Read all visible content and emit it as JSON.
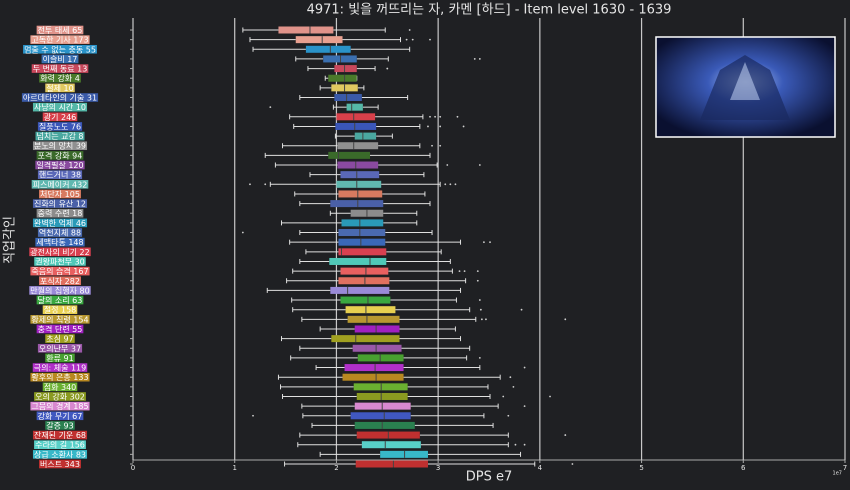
{
  "chart_data": {
    "type": "box",
    "title": "4971: 빛을 꺼뜨리는 자, 카멘 [하드] - Item level 1630 - 1639",
    "xlabel": "DPS e7",
    "ylabel": "직업각인",
    "offset_label": "1e7",
    "xlim": [
      0,
      7
    ],
    "xticks": [
      0,
      1,
      2,
      3,
      4,
      5,
      6,
      7
    ],
    "grid": true,
    "boxes": [
      {
        "name": "전투 태세 65",
        "color": "#e0938a",
        "whislo": 1.08,
        "q1": 1.43,
        "med": 1.74,
        "q3": 1.97,
        "whishi": 2.48,
        "fliers": [
          2.72
        ]
      },
      {
        "name": "고독한 기사 173",
        "color": "#e8a090",
        "whislo": 1.15,
        "q1": 1.6,
        "med": 1.86,
        "q3": 2.06,
        "whishi": 2.63,
        "fliers": [
          2.69,
          2.75,
          2.92
        ]
      },
      {
        "name": "멈출 수 없는 충동 55",
        "color": "#2a93c9",
        "whislo": 1.18,
        "q1": 1.7,
        "med": 1.94,
        "q3": 2.14,
        "whishi": 2.72,
        "fliers": []
      },
      {
        "name": "이슬비 17",
        "color": "#3a6fb0",
        "whislo": 1.6,
        "q1": 1.87,
        "med": 2.04,
        "q3": 2.2,
        "whishi": 2.51,
        "fliers": [
          3.36,
          3.41
        ]
      },
      {
        "name": "두 번째 동료 13",
        "color": "#c8485c",
        "whislo": 1.72,
        "q1": 1.98,
        "med": 2.08,
        "q3": 2.2,
        "whishi": 2.38,
        "fliers": [
          2.5
        ]
      },
      {
        "name": "화력 강화 4",
        "color": "#4a7a2a",
        "whislo": 1.89,
        "q1": 1.92,
        "med": 2.08,
        "q3": 2.2,
        "whishi": 2.2,
        "fliers": []
      },
      {
        "name": "절제 10",
        "color": "#e0c860",
        "whislo": 1.84,
        "q1": 1.95,
        "med": 2.08,
        "q3": 2.21,
        "whishi": 2.27,
        "fliers": []
      },
      {
        "name": "아르데타인의 기술 31",
        "color": "#3a5aa8",
        "whislo": 1.64,
        "q1": 1.98,
        "med": 2.1,
        "q3": 2.25,
        "whishi": 2.7,
        "fliers": []
      },
      {
        "name": "사냥의 시간 10",
        "color": "#55b8a8",
        "whislo": 1.97,
        "q1": 2.1,
        "med": 2.15,
        "q3": 2.26,
        "whishi": 2.41,
        "fliers": [
          1.35
        ]
      },
      {
        "name": "광기 246",
        "color": "#d8404a",
        "whislo": 1.54,
        "q1": 2.0,
        "med": 2.17,
        "q3": 2.38,
        "whishi": 2.85,
        "fliers": [
          2.92,
          2.97,
          3.02,
          3.19
        ]
      },
      {
        "name": "질풍노도 76",
        "color": "#3a56b8",
        "whislo": 1.58,
        "q1": 1.99,
        "med": 2.18,
        "q3": 2.39,
        "whishi": 2.82,
        "fliers": [
          2.9,
          3.02,
          3.25
        ]
      },
      {
        "name": "넘치는 교감 8",
        "color": "#4aa8a0",
        "whislo": 1.99,
        "q1": 2.18,
        "med": 2.26,
        "q3": 2.39,
        "whishi": 2.55,
        "fliers": []
      },
      {
        "name": "분노의 망치 39",
        "color": "#909090",
        "whislo": 1.47,
        "q1": 2.01,
        "med": 2.17,
        "q3": 2.41,
        "whishi": 2.82,
        "fliers": [
          2.94,
          3.02
        ]
      },
      {
        "name": "포격 강화 94",
        "color": "#3a6a2a",
        "whislo": 1.3,
        "q1": 1.92,
        "med": 2.02,
        "q3": 2.33,
        "whishi": 2.92,
        "fliers": []
      },
      {
        "name": "일격필살 120",
        "color": "#8a4aa0",
        "whislo": 1.4,
        "q1": 2.01,
        "med": 2.19,
        "q3": 2.41,
        "whishi": 2.99,
        "fliers": [
          3.09,
          3.41
        ]
      },
      {
        "name": "핸드거너 38",
        "color": "#5a68b8",
        "whislo": 1.74,
        "q1": 2.04,
        "med": 2.2,
        "q3": 2.42,
        "whishi": 2.86,
        "fliers": []
      },
      {
        "name": "피스메이커 432",
        "color": "#60b8b0",
        "whislo": 1.35,
        "q1": 2.0,
        "med": 2.2,
        "q3": 2.44,
        "whishi": 3.02,
        "fliers": [
          1.15,
          1.3,
          3.07,
          3.12,
          3.17
        ]
      },
      {
        "name": "처단자 105",
        "color": "#d87a60",
        "whislo": 1.59,
        "q1": 2.02,
        "med": 2.21,
        "q3": 2.45,
        "whishi": 2.87,
        "fliers": []
      },
      {
        "name": "진화의 유산 12",
        "color": "#4a60a8",
        "whislo": 1.64,
        "q1": 1.94,
        "med": 2.21,
        "q3": 2.46,
        "whishi": 2.92,
        "fliers": []
      },
      {
        "name": "중력 수련 18",
        "color": "#8c8c8c",
        "whislo": 1.94,
        "q1": 2.14,
        "med": 2.3,
        "q3": 2.46,
        "whishi": 2.79,
        "fliers": []
      },
      {
        "name": "완벽한 억제 46",
        "color": "#2a9ab8",
        "whislo": 1.46,
        "q1": 2.05,
        "med": 2.23,
        "q3": 2.46,
        "whishi": 2.79,
        "fliers": []
      },
      {
        "name": "역천지체 88",
        "color": "#4a6ab0",
        "whislo": 1.64,
        "q1": 2.02,
        "med": 2.23,
        "q3": 2.48,
        "whishi": 2.94,
        "fliers": [
          1.08
        ]
      },
      {
        "name": "세맥타통 148",
        "color": "#3a68b8",
        "whislo": 1.54,
        "q1": 2.02,
        "med": 2.24,
        "q3": 2.48,
        "whishi": 3.22,
        "fliers": [
          3.45,
          3.51
        ]
      },
      {
        "name": "광전사의 비기 22",
        "color": "#d84050",
        "whislo": 1.7,
        "q1": 2.02,
        "med": 2.05,
        "q3": 2.49,
        "whishi": 3.03,
        "fliers": []
      },
      {
        "name": "권왕파천무 30",
        "color": "#50c8b8",
        "whislo": 1.64,
        "q1": 1.93,
        "med": 2.33,
        "q3": 2.49,
        "whishi": 3.12,
        "fliers": []
      },
      {
        "name": "죽음의 습격 167",
        "color": "#e86060",
        "whislo": 1.57,
        "q1": 2.04,
        "med": 2.29,
        "q3": 2.51,
        "whishi": 3.14,
        "fliers": [
          3.21,
          3.26,
          3.39
        ]
      },
      {
        "name": "포식자 282",
        "color": "#e07060",
        "whislo": 1.51,
        "q1": 2.02,
        "med": 2.28,
        "q3": 2.52,
        "whishi": 3.27,
        "fliers": [
          3.39
        ]
      },
      {
        "name": "만월의 집행자 80",
        "color": "#9a8ad8",
        "whislo": 1.32,
        "q1": 1.94,
        "med": 2.11,
        "q3": 2.52,
        "whishi": 3.22,
        "fliers": []
      },
      {
        "name": "달의 소리 63",
        "color": "#3aa840",
        "whislo": 1.56,
        "q1": 2.04,
        "med": 2.31,
        "q3": 2.53,
        "whishi": 3.18,
        "fliers": [
          3.41
        ]
      },
      {
        "name": "절정 158",
        "color": "#e8d050",
        "whislo": 1.57,
        "q1": 2.09,
        "med": 2.29,
        "q3": 2.58,
        "whishi": 3.31,
        "fliers": [
          3.42,
          3.82
        ]
      },
      {
        "name": "황제의 칙령 154",
        "color": "#b89830",
        "whislo": 1.66,
        "q1": 2.11,
        "med": 2.3,
        "q3": 2.62,
        "whishi": 3.37,
        "fliers": [
          3.43,
          3.47,
          4.25
        ]
      },
      {
        "name": "충격 단련 55",
        "color": "#a020c0",
        "whislo": 1.84,
        "q1": 2.18,
        "med": 2.39,
        "q3": 2.62,
        "whishi": 3.17,
        "fliers": []
      },
      {
        "name": "초심 97",
        "color": "#a0a020",
        "whislo": 1.46,
        "q1": 1.95,
        "med": 2.19,
        "q3": 2.62,
        "whishi": 3.22,
        "fliers": []
      },
      {
        "name": "오의난무 37",
        "color": "#9a58a8",
        "whislo": 1.64,
        "q1": 2.16,
        "med": 2.39,
        "q3": 2.64,
        "whishi": 3.31,
        "fliers": []
      },
      {
        "name": "환류 91",
        "color": "#48a030",
        "whislo": 1.55,
        "q1": 2.21,
        "med": 2.43,
        "q3": 2.66,
        "whishi": 3.28,
        "fliers": [
          3.41
        ]
      },
      {
        "name": "극의: 체술 119",
        "color": "#b030c8",
        "whislo": 1.8,
        "q1": 2.08,
        "med": 2.38,
        "q3": 2.66,
        "whishi": 3.41,
        "fliers": [
          3.85
        ]
      },
      {
        "name": "황후의 은총 133",
        "color": "#b88820",
        "whislo": 1.43,
        "q1": 2.06,
        "med": 2.39,
        "q3": 2.66,
        "whishi": 3.61,
        "fliers": [
          3.71
        ]
      },
      {
        "name": "점화 340",
        "color": "#6ab030",
        "whislo": 1.45,
        "q1": 2.17,
        "med": 2.44,
        "q3": 2.7,
        "whishi": 3.49,
        "fliers": [
          3.74
        ]
      },
      {
        "name": "오의 강화 302",
        "color": "#8a9a20",
        "whislo": 1.47,
        "q1": 2.2,
        "med": 2.44,
        "q3": 2.7,
        "whishi": 3.51,
        "fliers": [
          3.64,
          4.1
        ]
      },
      {
        "name": "그믐의 경계 185",
        "color": "#d888d0",
        "whislo": 1.66,
        "q1": 2.18,
        "med": 2.45,
        "q3": 2.73,
        "whishi": 3.59,
        "fliers": [
          3.85
        ]
      },
      {
        "name": "강화 무기 67",
        "color": "#4058c0",
        "whislo": 1.67,
        "q1": 2.14,
        "med": 2.47,
        "q3": 2.73,
        "whishi": 3.45,
        "fliers": [
          1.18,
          3.69
        ]
      },
      {
        "name": "갈증 93",
        "color": "#2a8050",
        "whislo": 1.76,
        "q1": 2.18,
        "med": 2.45,
        "q3": 2.77,
        "whishi": 3.54,
        "fliers": []
      },
      {
        "name": "잔재된 기운 68",
        "color": "#c03030",
        "whislo": 1.64,
        "q1": 2.2,
        "med": 2.51,
        "q3": 2.82,
        "whishi": 3.69,
        "fliers": [
          4.25
        ]
      },
      {
        "name": "수라의 길 156",
        "color": "#58d0c8",
        "whislo": 1.62,
        "q1": 2.25,
        "med": 2.48,
        "q3": 2.83,
        "whishi": 3.69,
        "fliers": [
          3.76,
          3.85
        ]
      },
      {
        "name": "상급 소환사 83",
        "color": "#38b8c8",
        "whislo": 1.84,
        "q1": 2.43,
        "med": 2.67,
        "q3": 2.9,
        "whishi": 3.81,
        "fliers": []
      },
      {
        "name": "버스트 343",
        "color": "#c03030",
        "whislo": 1.49,
        "q1": 2.19,
        "med": 2.56,
        "q3": 2.9,
        "whishi": 3.95,
        "fliers": [
          4.32
        ]
      }
    ]
  }
}
